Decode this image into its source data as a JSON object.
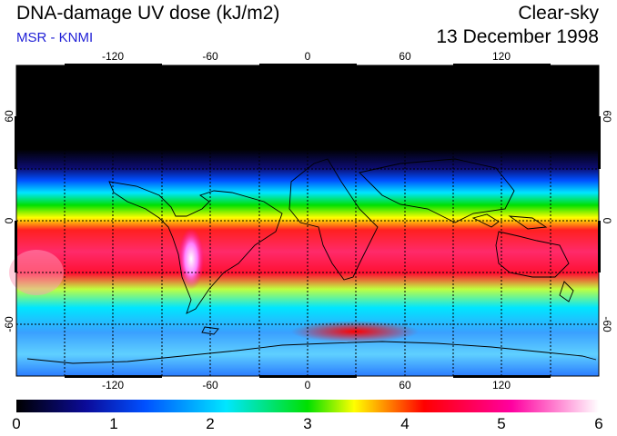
{
  "header": {
    "title": "DNA-damage UV dose (kJ/m2)",
    "subtitle": "MSR - KNMI",
    "condition": "Clear-sky",
    "date": "13 December 1998"
  },
  "map": {
    "projection": "equirectangular",
    "lon_range": [
      -180,
      180
    ],
    "lat_range": [
      -90,
      90
    ],
    "lon_ticks": [
      "-120",
      "-60",
      "0",
      "60",
      "120"
    ],
    "lat_ticks_left": [
      "60",
      "0",
      "-60"
    ],
    "lat_ticks_right": [
      "60",
      "0",
      "-60"
    ],
    "grid": "dashed 30°"
  },
  "colorbar": {
    "min": 0,
    "max": 6,
    "labels": [
      "0",
      "1",
      "2",
      "3",
      "4",
      "5",
      "6"
    ],
    "colors": [
      "#000000",
      "#0b0b9a",
      "#0050ff",
      "#00e6ff",
      "#00e000",
      "#ffff00",
      "#ff0000",
      "#ff00a0",
      "#ffffff"
    ]
  }
}
